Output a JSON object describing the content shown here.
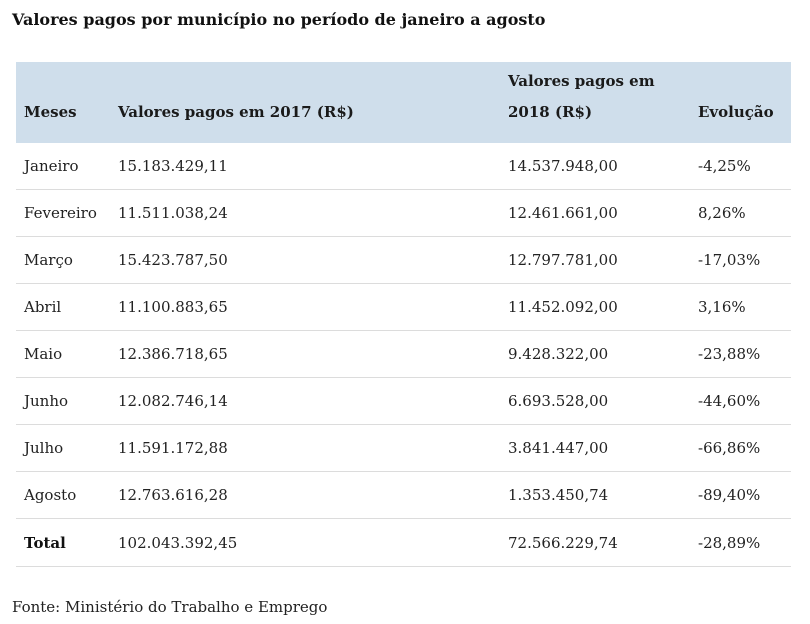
{
  "title": "Valores pagos por município no período de janeiro a agosto",
  "table": {
    "headers": {
      "month": "Meses",
      "values_2017": "Valores pagos em 2017 (R$)",
      "values_2018_line1": "Valores pagos em",
      "values_2018_line2": "2018 (R$)",
      "evolution": "Evolução"
    },
    "rows": [
      {
        "month": "Janeiro",
        "v2017": "15.183.429,11",
        "v2018": "14.537.948,00",
        "evolution": "-4,25%"
      },
      {
        "month": "Fevereiro",
        "v2017": "11.511.038,24",
        "v2018": "12.461.661,00",
        "evolution": "8,26%"
      },
      {
        "month": "Março",
        "v2017": "15.423.787,50",
        "v2018": "12.797.781,00",
        "evolution": "-17,03%"
      },
      {
        "month": "Abril",
        "v2017": "11.100.883,65",
        "v2018": "11.452.092,00",
        "evolution": "3,16%"
      },
      {
        "month": "Maio",
        "v2017": "12.386.718,65",
        "v2018": "9.428.322,00",
        "evolution": "-23,88%"
      },
      {
        "month": "Junho",
        "v2017": "12.082.746,14",
        "v2018": "6.693.528,00",
        "evolution": "-44,60%"
      },
      {
        "month": "Julho",
        "v2017": "11.591.172,88",
        "v2018": "3.841.447,00",
        "evolution": "-66,86%"
      },
      {
        "month": "Agosto",
        "v2017": "12.763.616,28",
        "v2018": "1.353.450,74",
        "evolution": "-89,40%"
      }
    ],
    "total": {
      "month": "Total",
      "v2017": "102.043.392,45",
      "v2018": "72.566.229,74",
      "evolution": "-28,89%"
    }
  },
  "source": "Fonte: Ministério do Trabalho e Emprego",
  "colors": {
    "header_background": "#cfdeeb",
    "row_divider": "#dcdcdc",
    "text": "#222222"
  }
}
